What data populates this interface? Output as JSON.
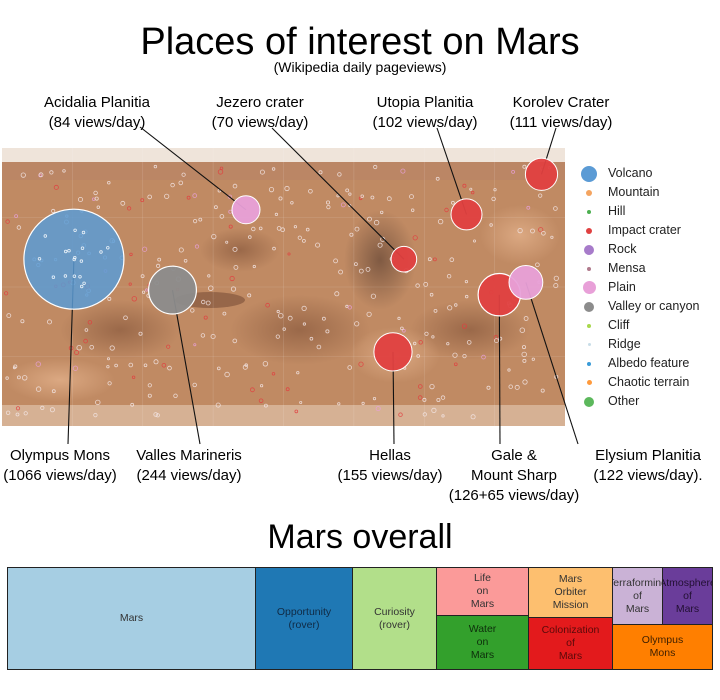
{
  "title": "Places of interest on Mars",
  "subtitle": "(Wikipedia daily pageviews)",
  "chart_data": [
    {
      "type": "scatter",
      "title": "Places of interest on Mars",
      "subtitle": "(Wikipedia daily pageviews)",
      "size_measure": "views/day",
      "legend_placement": "right",
      "legend": [
        {
          "label": "Volcano",
          "color": "#5b9bd5"
        },
        {
          "label": "Mountain",
          "color": "#f4a460"
        },
        {
          "label": "Hill",
          "color": "#4caf50"
        },
        {
          "label": "Impact crater",
          "color": "#e04040"
        },
        {
          "label": "Rock",
          "color": "#a77bca"
        },
        {
          "label": "Mensa",
          "color": "#b07a8c"
        },
        {
          "label": "Plain",
          "color": "#e8a0d8"
        },
        {
          "label": "Valley or canyon",
          "color": "#8c8c8c"
        },
        {
          "label": "Cliff",
          "color": "#a8d84c"
        },
        {
          "label": "Ridge",
          "color": "#c8dde8"
        },
        {
          "label": "Albedo feature",
          "color": "#3a9bd8"
        },
        {
          "label": "Chaotic terrain",
          "color": "#ff9a3c"
        },
        {
          "label": "Other",
          "color": "#5cb85c"
        }
      ],
      "labeled_points": [
        {
          "name": "Olympus Mons",
          "type": "Volcano",
          "label_line1": "Olympus Mons",
          "label_line2": "(1066 views/day)",
          "views_per_day": 1066,
          "lon": -134,
          "lat": 18
        },
        {
          "name": "Valles Marineris",
          "type": "Valley or canyon",
          "label_line1": "Valles Marineris",
          "label_line2": "(244 views/day)",
          "views_per_day": 244,
          "lon": -71,
          "lat": -2
        },
        {
          "name": "Acidalia Planitia",
          "type": "Plain",
          "label_line1": "Acidalia Planitia",
          "label_line2": "(84 views/day)",
          "views_per_day": 84,
          "lon": -24,
          "lat": 50
        },
        {
          "name": "Jezero crater",
          "type": "Impact crater",
          "label_line1": "Jezero crater",
          "label_line2": "(70 views/day)",
          "views_per_day": 70,
          "lon": 77,
          "lat": 18
        },
        {
          "name": "Utopia Planitia",
          "type": "Impact crater",
          "label_line1": "Utopia Planitia",
          "label_line2": "(102 views/day)",
          "views_per_day": 102,
          "lon": 117,
          "lat": 47
        },
        {
          "name": "Korolev Crater",
          "type": "Impact crater",
          "label_line1": "Korolev Crater",
          "label_line2": "(111 views/day)",
          "views_per_day": 111,
          "lon": 165,
          "lat": 73
        },
        {
          "name": "Hellas",
          "type": "Impact crater",
          "label_line1": "Hellas",
          "label_line2": "(155 views/day)",
          "views_per_day": 155,
          "lon": 70,
          "lat": -42
        },
        {
          "name": "Gale & Mount Sharp",
          "type": "Impact crater",
          "label_line1": "Gale &",
          "label_line2": "Mount Sharp",
          "label_line3": "(126+65 views/day)",
          "views_per_day": 191,
          "lon": 138,
          "lat": -5
        },
        {
          "name": "Elysium Planitia",
          "type": "Plain",
          "label_line1": "Elysium Planitia",
          "label_line2": "(122 views/day).",
          "views_per_day": 122,
          "lon": 155,
          "lat": 3
        }
      ]
    },
    {
      "type": "treemap",
      "title": "Mars overall",
      "tiles": [
        {
          "label": "Mars",
          "color": "#a6cee3",
          "text_color": "#333333",
          "share": 0.353
        },
        {
          "label": "Opportunity\n(rover)",
          "color": "#1f78b4",
          "text_color": "#102a44",
          "share": 0.14
        },
        {
          "label": "Curiosity\n(rover)",
          "color": "#b2df8a",
          "text_color": "#333333",
          "share": 0.12
        },
        {
          "label": "Life\non\nMars",
          "color": "#fb9a99",
          "text_color": "#333333",
          "share": 0.062
        },
        {
          "label": "Water\non\nMars",
          "color": "#33a02c",
          "text_color": "#0e2e0c",
          "share": 0.062
        },
        {
          "label": "Mars\nOrbiter\nMission",
          "color": "#fdbf6f",
          "text_color": "#333333",
          "share": 0.058
        },
        {
          "label": "Colonization\nof\nMars",
          "color": "#e31a1c",
          "text_color": "#5a0a0a",
          "share": 0.055
        },
        {
          "label": "Terraforming\nof\nMars",
          "color": "#cab2d6",
          "text_color": "#333333",
          "share": 0.031
        },
        {
          "label": "Atmosphere\nof\nMars",
          "color": "#6a3d9a",
          "text_color": "#221033",
          "share": 0.031
        },
        {
          "label": "Olympus\nMons",
          "color": "#ff7f00",
          "text_color": "#3d1f00",
          "share": 0.088
        }
      ]
    }
  ],
  "overall_title": "Mars overall"
}
